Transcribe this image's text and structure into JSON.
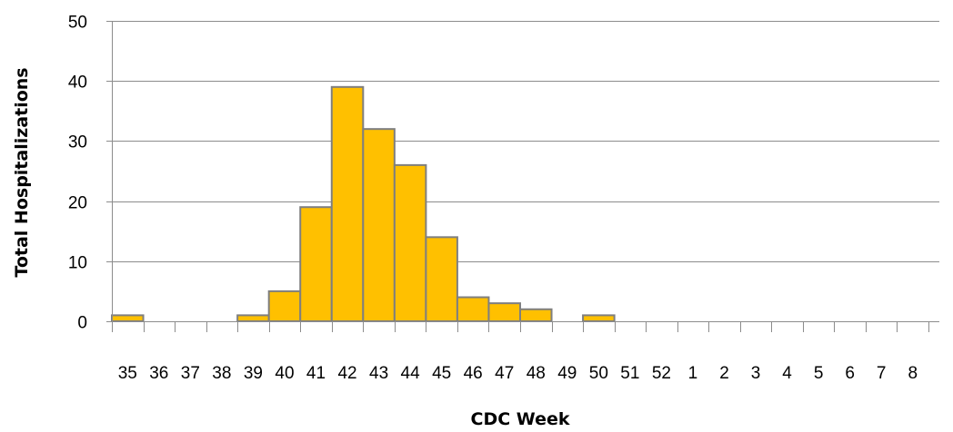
{
  "chart_data": {
    "type": "bar",
    "title": "",
    "xlabel": "CDC Week",
    "ylabel": "Total Hospitalizations",
    "ylim": [
      0,
      50
    ],
    "yticks": [
      0,
      10,
      20,
      30,
      40,
      50
    ],
    "grid": true,
    "legend": "none",
    "bar_color": "#FFC000",
    "bar_edge_color": "#7F7F7F",
    "categories": [
      "35",
      "36",
      "37",
      "38",
      "39",
      "40",
      "41",
      "42",
      "43",
      "44",
      "45",
      "46",
      "47",
      "48",
      "49",
      "50",
      "51",
      "52",
      "1",
      "2",
      "3",
      "4",
      "5",
      "6",
      "7",
      "8"
    ],
    "values": [
      1,
      0,
      0,
      0,
      1,
      5,
      19,
      39,
      32,
      26,
      14,
      4,
      3,
      2,
      0,
      1,
      0,
      0,
      0,
      0,
      0,
      0,
      0,
      0,
      0,
      0
    ]
  }
}
